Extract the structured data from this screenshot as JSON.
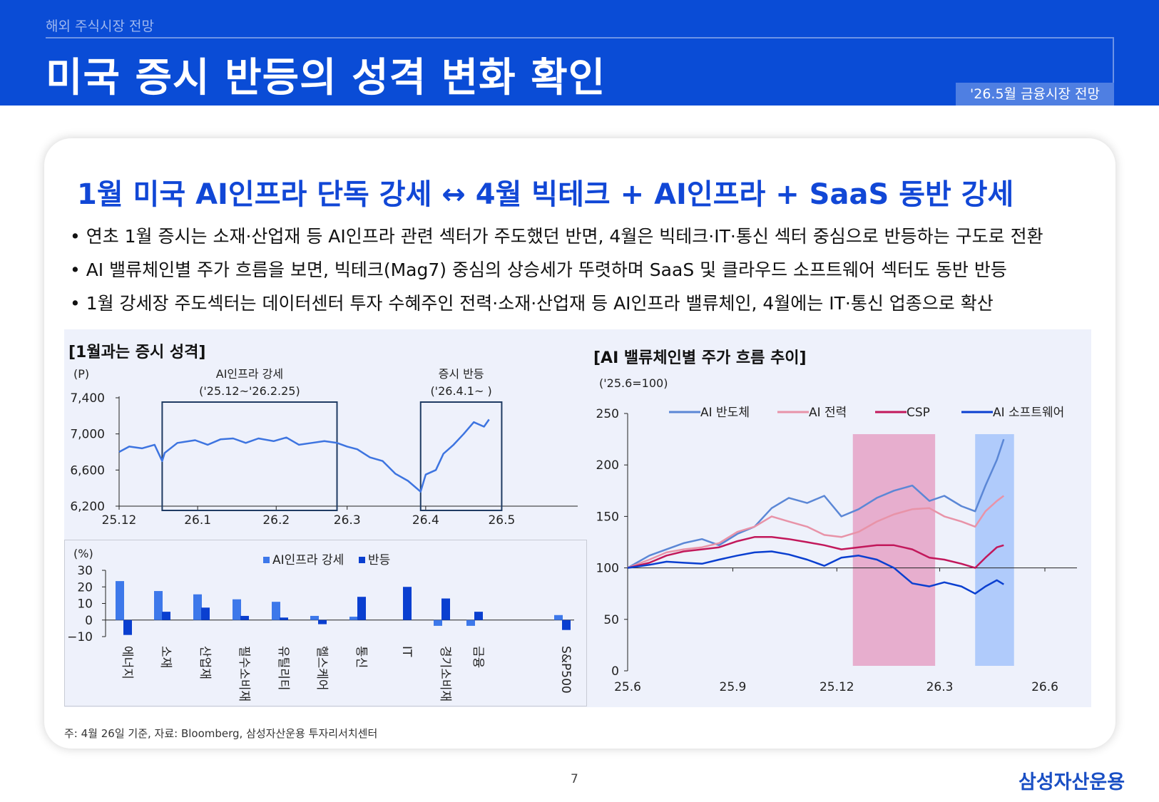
{
  "header": {
    "breadcrumb": "해외 주식시장 전망",
    "title": "미국 증시 반등의 성격 변화 확인",
    "tag": "'26.5월 금융시장 전망"
  },
  "headline": "1월 미국 AI인프라 단독 강세 ↔ 4월 빅테크 + AI인프라 + SaaS 동반 강세",
  "bullets": [
    "• 연초 1월 증시는 소재·산업재 등 AI인프라 관련 섹터가 주도했던 반면, 4월은 빅테크·IT·통신 섹터 중심으로 반등하는 구도로 전환",
    "• AI 밸류체인별 주가 흐름을 보면, 빅테크(Mag7) 중심의 상승세가 뚜렷하며 SaaS 및 클라우드 소프트웨어 섹터도 동반 반등",
    "• 1월 강세장 주도섹터는 데이터센터 투자 수혜주인 전력·소재·산업재 등 AI인프라 밸류체인, 4월에는 IT·통신 업종으로 확산"
  ],
  "footer": {
    "note": "주: 4월 26일 기준, 자료: Bloomberg, 삼성자산운용 투자리서치센터",
    "page": "7",
    "logo": "삼성자산운용"
  },
  "colors": {
    "brand": "#0a4cd6",
    "headline": "#1147d6",
    "line": "#3d74e0",
    "box": "#1f3b63",
    "bar_light": "#3d78ea",
    "bar_dark": "#0a3fd0",
    "semis": "#5b87d6",
    "power": "#e893a8",
    "csp": "#c2185b",
    "software": "#0a3fd0",
    "highlight_pink": "#e5a6c9",
    "highlight_blue": "#a9c7fb"
  },
  "chart_data": [
    {
      "type": "line",
      "title": "[1월과는 증시 성격]",
      "ylabel": "(P)",
      "xlabel": "",
      "ylim": [
        6200,
        7400
      ],
      "yticks": [
        "7,400",
        "7,000",
        "6,600",
        "6,200"
      ],
      "xticks": [
        "25.12",
        "26.1",
        "26.2",
        "26.3",
        "26.4",
        "26.5"
      ],
      "annotations": [
        {
          "label": "AI인프라 강세",
          "sublabel": "('25.12~'26.2.25)",
          "x_from": "2025-12-18",
          "x_to": "2026-02-25"
        },
        {
          "label": "증시 반등",
          "sublabel": "('26.4.1~ )",
          "x_from": "2026-03-30",
          "x_to": "2026-05-01"
        }
      ],
      "series": [
        {
          "x": [
            "2025-12-01",
            "2025-12-05",
            "2025-12-10",
            "2025-12-15",
            "2025-12-18",
            "2025-12-19",
            "2025-12-24",
            "2025-12-31",
            "2026-01-05",
            "2026-01-10",
            "2026-01-15",
            "2026-01-20",
            "2026-01-25",
            "2026-01-31",
            "2026-02-05",
            "2026-02-10",
            "2026-02-15",
            "2026-02-20",
            "2026-02-25",
            "2026-03-01",
            "2026-03-05",
            "2026-03-10",
            "2026-03-15",
            "2026-03-20",
            "2026-03-25",
            "2026-03-30",
            "2026-04-01",
            "2026-04-05",
            "2026-04-08",
            "2026-04-12",
            "2026-04-16",
            "2026-04-20",
            "2026-04-24",
            "2026-04-26"
          ],
          "y": [
            6800,
            6860,
            6840,
            6880,
            6700,
            6790,
            6900,
            6930,
            6880,
            6940,
            6950,
            6900,
            6950,
            6920,
            6960,
            6880,
            6900,
            6920,
            6900,
            6860,
            6830,
            6740,
            6700,
            6560,
            6480,
            6360,
            6550,
            6600,
            6780,
            6880,
            7000,
            7130,
            7080,
            7160
          ]
        }
      ]
    },
    {
      "type": "bar",
      "ylabel": "(%)",
      "ylim": [
        -10,
        30
      ],
      "yticks": [
        "30",
        "20",
        "10",
        "0",
        "-10"
      ],
      "categories": [
        "에너지",
        "소재",
        "산업재",
        "필수소비재",
        "유틸리티",
        "헬스케어",
        "통신",
        "IT",
        "경기소비재",
        "금융",
        "S&P500"
      ],
      "series": [
        {
          "name": "AI인프라 강세",
          "values": [
            23.5,
            17.5,
            15.5,
            12.5,
            11,
            2.5,
            2,
            0,
            -3.5,
            -3.5,
            3
          ]
        },
        {
          "name": "반등",
          "values": [
            -9,
            5,
            7.5,
            2.5,
            1.5,
            -2.5,
            14,
            20,
            13,
            5,
            -6
          ]
        }
      ]
    },
    {
      "type": "line",
      "title": "[AI 밸류체인별 주가 흐름 추이]",
      "ylabel": "('25.6=100)",
      "xlabel": "",
      "ylim": [
        0,
        250
      ],
      "yticks": [
        "250",
        "200",
        "150",
        "100",
        "50",
        "0"
      ],
      "xticks": [
        "25.6",
        "25.9",
        "25.12",
        "26.3",
        "26.6"
      ],
      "legend": "top",
      "highlights": [
        {
          "x_from": "2025-12-15",
          "x_to": "2026-02-25",
          "color": "pink"
        },
        {
          "x_from": "2026-04-01",
          "x_to": "2026-05-05",
          "color": "blue"
        }
      ],
      "series": [
        {
          "name": "AI 반도체",
          "x": [
            "2025-06-01",
            "2025-06-20",
            "2025-07-05",
            "2025-07-20",
            "2025-08-05",
            "2025-08-20",
            "2025-09-05",
            "2025-09-20",
            "2025-10-05",
            "2025-10-20",
            "2025-11-05",
            "2025-11-20",
            "2025-12-05",
            "2025-12-20",
            "2026-01-05",
            "2026-01-20",
            "2026-02-05",
            "2026-02-20",
            "2026-03-05",
            "2026-03-20",
            "2026-04-01",
            "2026-04-10",
            "2026-04-20",
            "2026-04-26"
          ],
          "y": [
            100,
            112,
            118,
            124,
            128,
            122,
            133,
            140,
            158,
            168,
            163,
            170,
            150,
            157,
            168,
            175,
            180,
            165,
            170,
            160,
            155,
            180,
            205,
            225
          ]
        },
        {
          "name": "AI 전력",
          "x": [
            "2025-06-01",
            "2025-06-20",
            "2025-07-05",
            "2025-07-20",
            "2025-08-05",
            "2025-08-20",
            "2025-09-05",
            "2025-09-20",
            "2025-10-05",
            "2025-10-20",
            "2025-11-05",
            "2025-11-20",
            "2025-12-05",
            "2025-12-20",
            "2026-01-05",
            "2026-01-20",
            "2026-02-05",
            "2026-02-20",
            "2026-03-05",
            "2026-03-20",
            "2026-04-01",
            "2026-04-10",
            "2026-04-20",
            "2026-04-26"
          ],
          "y": [
            100,
            108,
            115,
            118,
            120,
            124,
            135,
            140,
            150,
            145,
            140,
            132,
            130,
            135,
            145,
            152,
            157,
            158,
            150,
            145,
            140,
            155,
            165,
            170
          ]
        },
        {
          "name": "CSP",
          "x": [
            "2025-06-01",
            "2025-06-20",
            "2025-07-05",
            "2025-07-20",
            "2025-08-05",
            "2025-08-20",
            "2025-09-05",
            "2025-09-20",
            "2025-10-05",
            "2025-10-20",
            "2025-11-05",
            "2025-11-20",
            "2025-12-05",
            "2025-12-20",
            "2026-01-05",
            "2026-01-20",
            "2026-02-05",
            "2026-02-20",
            "2026-03-05",
            "2026-03-20",
            "2026-04-01",
            "2026-04-10",
            "2026-04-20",
            "2026-04-26"
          ],
          "y": [
            100,
            105,
            112,
            116,
            118,
            120,
            126,
            130,
            130,
            128,
            125,
            122,
            118,
            120,
            122,
            122,
            118,
            110,
            108,
            104,
            100,
            110,
            120,
            122
          ]
        },
        {
          "name": "AI 소프트웨어",
          "x": [
            "2025-06-01",
            "2025-06-20",
            "2025-07-05",
            "2025-07-20",
            "2025-08-05",
            "2025-08-20",
            "2025-09-05",
            "2025-09-20",
            "2025-10-05",
            "2025-10-20",
            "2025-11-05",
            "2025-11-20",
            "2025-12-05",
            "2025-12-20",
            "2026-01-05",
            "2026-01-20",
            "2026-02-05",
            "2026-02-20",
            "2026-03-05",
            "2026-03-20",
            "2026-04-01",
            "2026-04-10",
            "2026-04-20",
            "2026-04-26"
          ],
          "y": [
            100,
            103,
            106,
            105,
            104,
            108,
            112,
            115,
            116,
            113,
            108,
            102,
            110,
            112,
            108,
            100,
            85,
            82,
            86,
            82,
            75,
            82,
            88,
            84
          ]
        }
      ]
    }
  ]
}
